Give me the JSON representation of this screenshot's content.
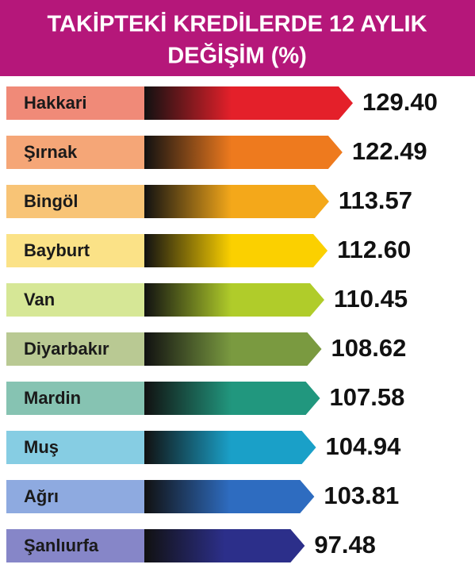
{
  "chart_data": {
    "type": "bar",
    "orientation": "horizontal",
    "title_lines": [
      "TAKİPTEKİ KREDİLERDE 12 AYLIK",
      "DEĞİŞİM (%)"
    ],
    "categories": [
      "Hakkari",
      "Şırnak",
      "Bingöl",
      "Bayburt",
      "Van",
      "Diyarbakır",
      "Mardin",
      "Muş",
      "Ağrı",
      "Şanlıurfa"
    ],
    "values": [
      129.4,
      122.49,
      113.57,
      112.6,
      110.45,
      108.62,
      107.58,
      104.94,
      103.81,
      97.48
    ],
    "value_labels": [
      "129.40",
      "122.49",
      "113.57",
      "112.60",
      "110.45",
      "108.62",
      "107.58",
      "104.94",
      "103.81",
      "97.48"
    ],
    "colors": [
      "#e4202a",
      "#ee7a1e",
      "#f4a81a",
      "#fbd000",
      "#b0cc2a",
      "#7a9a40",
      "#21977e",
      "#1aa0c8",
      "#2e6cc0",
      "#2c2f8a"
    ],
    "label_colors": [
      "#f08a78",
      "#f5a677",
      "#f8c476",
      "#fbe287",
      "#d6e796",
      "#b9c993",
      "#86c3b2",
      "#86cde3",
      "#8eaae0",
      "#8686c8"
    ],
    "title_color": "#b5177a"
  }
}
